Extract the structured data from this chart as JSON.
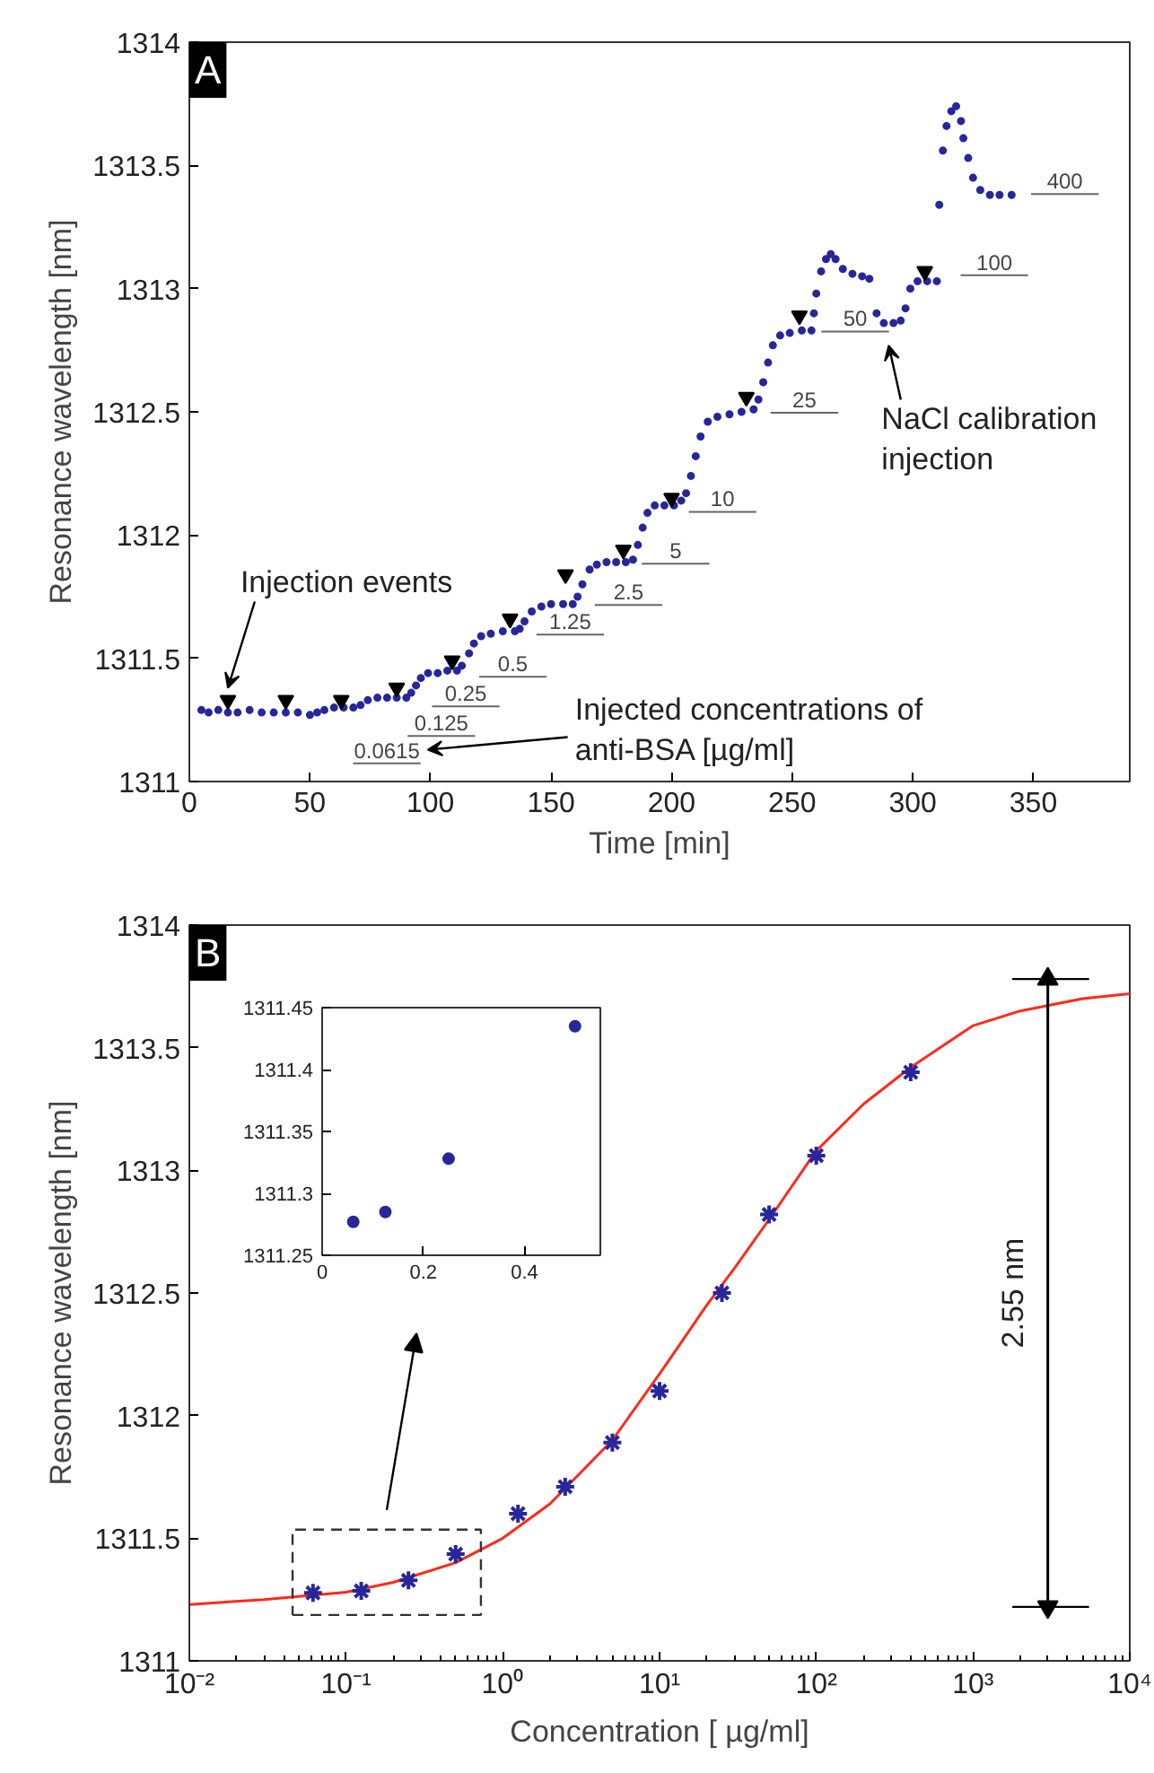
{
  "chart_data": [
    {
      "type": "scatter",
      "xlabel": "Time [min]",
      "ylabel": "Resonance wavelength [nm]",
      "xlim": [
        0,
        390
      ],
      "ylim": [
        1311,
        1314
      ],
      "xticks": [
        0,
        50,
        100,
        150,
        200,
        250,
        300,
        350
      ],
      "yticks": [
        1311,
        1311.5,
        1312,
        1312.5,
        1313,
        1313.5,
        1314
      ],
      "series": [
        {
          "marker": "circle",
          "color": "#27279b",
          "x": [
            5,
            8,
            12,
            16,
            20,
            25,
            30,
            35,
            40,
            45,
            50,
            53,
            56,
            60,
            64,
            68,
            71,
            74,
            78,
            82,
            86,
            90,
            92,
            94,
            96,
            99,
            103,
            107,
            111,
            113,
            116,
            118,
            121,
            125,
            130,
            135,
            137,
            139,
            142,
            146,
            150,
            155,
            159,
            161,
            163,
            166,
            169,
            173,
            177,
            181,
            184,
            186,
            188,
            190,
            193,
            197,
            201,
            204,
            206,
            208,
            210,
            212,
            215,
            219,
            224,
            229,
            234,
            236,
            238,
            240,
            242,
            245,
            249,
            254,
            258,
            259,
            260,
            262,
            264,
            266,
            268,
            271,
            275,
            279,
            282,
            285,
            288,
            292,
            295,
            297,
            299,
            302,
            306,
            310,
            311,
            312.5,
            314,
            316,
            318,
            320,
            321,
            323,
            325,
            328,
            332,
            336,
            341
          ],
          "values": [
            1311.29,
            1311.28,
            1311.29,
            1311.28,
            1311.28,
            1311.29,
            1311.28,
            1311.28,
            1311.28,
            1311.28,
            1311.27,
            1311.28,
            1311.29,
            1311.3,
            1311.3,
            1311.3,
            1311.31,
            1311.33,
            1311.34,
            1311.34,
            1311.34,
            1311.34,
            1311.36,
            1311.39,
            1311.42,
            1311.44,
            1311.44,
            1311.45,
            1311.45,
            1311.47,
            1311.52,
            1311.56,
            1311.59,
            1311.6,
            1311.61,
            1311.61,
            1311.62,
            1311.65,
            1311.69,
            1311.71,
            1311.72,
            1311.72,
            1311.72,
            1311.75,
            1311.8,
            1311.86,
            1311.88,
            1311.89,
            1311.89,
            1311.89,
            1311.9,
            1311.96,
            1312.03,
            1312.09,
            1312.12,
            1312.12,
            1312.12,
            1312.14,
            1312.17,
            1312.24,
            1312.32,
            1312.4,
            1312.46,
            1312.48,
            1312.49,
            1312.5,
            1312.51,
            1312.55,
            1312.62,
            1312.7,
            1312.77,
            1312.81,
            1312.82,
            1312.83,
            1312.83,
            1312.9,
            1312.98,
            1313.07,
            1313.12,
            1313.14,
            1313.12,
            1313.08,
            1313.06,
            1313.05,
            1313.04,
            1312.9,
            1312.86,
            1312.86,
            1312.87,
            1312.92,
            1313,
            1313.03,
            1313.03,
            1313.03,
            1313.34,
            1313.56,
            1313.66,
            1313.72,
            1313.74,
            1313.68,
            1313.61,
            1313.53,
            1313.45,
            1313.4,
            1313.38,
            1313.38,
            1313.38
          ]
        },
        {
          "marker": "triangle",
          "color": "#000000",
          "x": [
            16,
            40,
            63,
            86,
            109,
            133,
            156,
            180,
            200,
            231,
            253,
            305
          ],
          "values": [
            1311.33,
            1311.33,
            1311.33,
            1311.38,
            1311.49,
            1311.66,
            1311.84,
            1311.94,
            1312.15,
            1312.56,
            1312.89,
            1313.07
          ]
        }
      ],
      "annotations": [
        "A",
        "Injection events",
        "Injected concentrations of\nanti-BSA [µg/ml]",
        "NaCl calibration\ninjection",
        "0.0615",
        "0.125",
        "0.25",
        "0.5",
        "1.25",
        "2.5",
        "5",
        "10",
        "25",
        "50",
        "100",
        "400"
      ]
    },
    {
      "type": "scatter",
      "log": "x",
      "xlabel": "Concentration [ µg/ml]",
      "ylabel": "Resonance wavelength [nm]",
      "xlim": [
        0.01,
        10000
      ],
      "ylim": [
        1311,
        1314
      ],
      "xticks": [
        {
          "value": 0.01,
          "label": "10⁻²"
        },
        {
          "value": 0.1,
          "label": "10⁻¹"
        },
        {
          "value": 1,
          "label": "10⁰"
        },
        {
          "value": 10,
          "label": "10¹"
        },
        {
          "value": 100,
          "label": "10²"
        },
        {
          "value": 1000,
          "label": "10³"
        },
        {
          "value": 10000,
          "label": "10⁴"
        }
      ],
      "yticks": [
        1311,
        1311.5,
        1312,
        1312.5,
        1313,
        1313.5,
        1314
      ],
      "series": [
        {
          "type": "line",
          "color": "#ff2a1a",
          "x": [
            0.01,
            0.03,
            0.1,
            0.2,
            0.5,
            1,
            2,
            5,
            10,
            20,
            30,
            50,
            100,
            200,
            400,
            1000,
            2000,
            5000,
            10000
          ],
          "values": [
            1311.23,
            1311.25,
            1311.28,
            1311.32,
            1311.4,
            1311.5,
            1311.64,
            1311.9,
            1312.17,
            1312.45,
            1312.6,
            1312.8,
            1313.08,
            1313.27,
            1313.42,
            1313.59,
            1313.65,
            1313.7,
            1313.72
          ]
        },
        {
          "type": "line",
          "marker": "triangle",
          "color": "#000000",
          "x": [
            3000,
            3000
          ],
          "values": [
            1311.22,
            1313.78
          ],
          "xerrors": [
            [
              1780,
              5500
            ],
            [
              1780,
              5500
            ]
          ]
        },
        {
          "marker": "cross",
          "color": "#27279b",
          "x": [
            0.0615,
            0.125,
            0.25,
            0.5,
            1.25,
            2.5,
            5,
            10,
            25,
            50,
            100,
            400
          ],
          "values": [
            1311.277,
            1311.285,
            1311.328,
            1311.435,
            1311.6,
            1311.71,
            1311.89,
            1312.1,
            1312.5,
            1312.82,
            1313.06,
            1313.4
          ]
        }
      ],
      "annotations": [
        "B",
        "2.55 nm"
      ]
    },
    {
      "type": "scatter",
      "xlim": [
        0,
        0.55
      ],
      "ylim": [
        1311.25,
        1311.45
      ],
      "xticks": [
        0,
        0.2,
        0.4
      ],
      "yticks": [
        1311.25,
        1311.3,
        1311.35,
        1311.4,
        1311.45
      ],
      "series": [
        {
          "marker": "circle",
          "color": "#27279b",
          "x": [
            0.0615,
            0.125,
            0.25,
            0.5
          ],
          "values": [
            1311.277,
            1311.285,
            1311.328,
            1311.435
          ]
        }
      ]
    }
  ]
}
